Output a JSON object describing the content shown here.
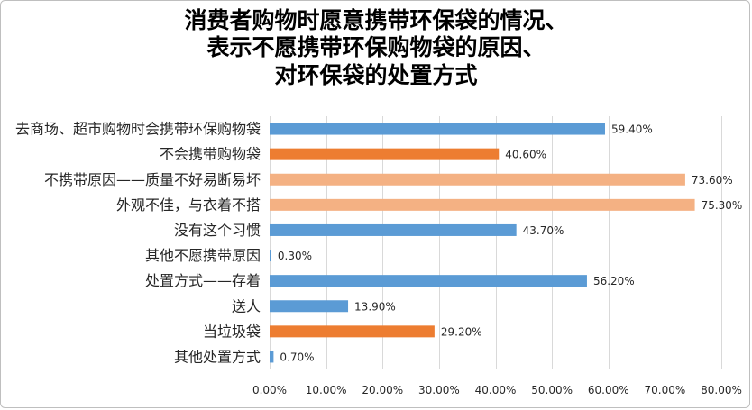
{
  "chart_data": {
    "type": "bar",
    "orientation": "horizontal",
    "title": [
      "消费者购物时愿意携带环保袋的情况、",
      "表示不愿携带环保购物袋的原因、",
      "对环保袋的处置方式"
    ],
    "categories": [
      "去商场、超市购物时会携带环保购物袋",
      "不会携带购物袋",
      "不携带原因——质量不好易断易坏",
      "外观不佳，与衣着不搭",
      "没有这个习惯",
      "其他不愿携带原因",
      "处置方式——存着",
      "送人",
      "当垃圾袋",
      "其他处置方式"
    ],
    "values": [
      59.4,
      40.6,
      73.6,
      75.3,
      43.7,
      0.3,
      56.2,
      13.9,
      29.2,
      0.7
    ],
    "data_labels": [
      "59.40%",
      "40.60%",
      "73.60%",
      "75.30%",
      "43.70%",
      "0.30%",
      "56.20%",
      "13.90%",
      "29.20%",
      "0.70%"
    ],
    "bar_colors": [
      "#5B9BD5",
      "#ED7D31",
      "#F4B183",
      "#F4B183",
      "#5B9BD5",
      "#5B9BD5",
      "#5B9BD5",
      "#5B9BD5",
      "#ED7D31",
      "#5B9BD5"
    ],
    "xlim": [
      0,
      80
    ],
    "x_ticks": [
      0,
      10,
      20,
      30,
      40,
      50,
      60,
      70,
      80
    ],
    "x_tick_labels": [
      "0.00%",
      "10.00%",
      "20.00%",
      "30.00%",
      "40.00%",
      "50.00%",
      "60.00%",
      "70.00%",
      "80.00%"
    ],
    "grid": true,
    "legend": "none"
  }
}
